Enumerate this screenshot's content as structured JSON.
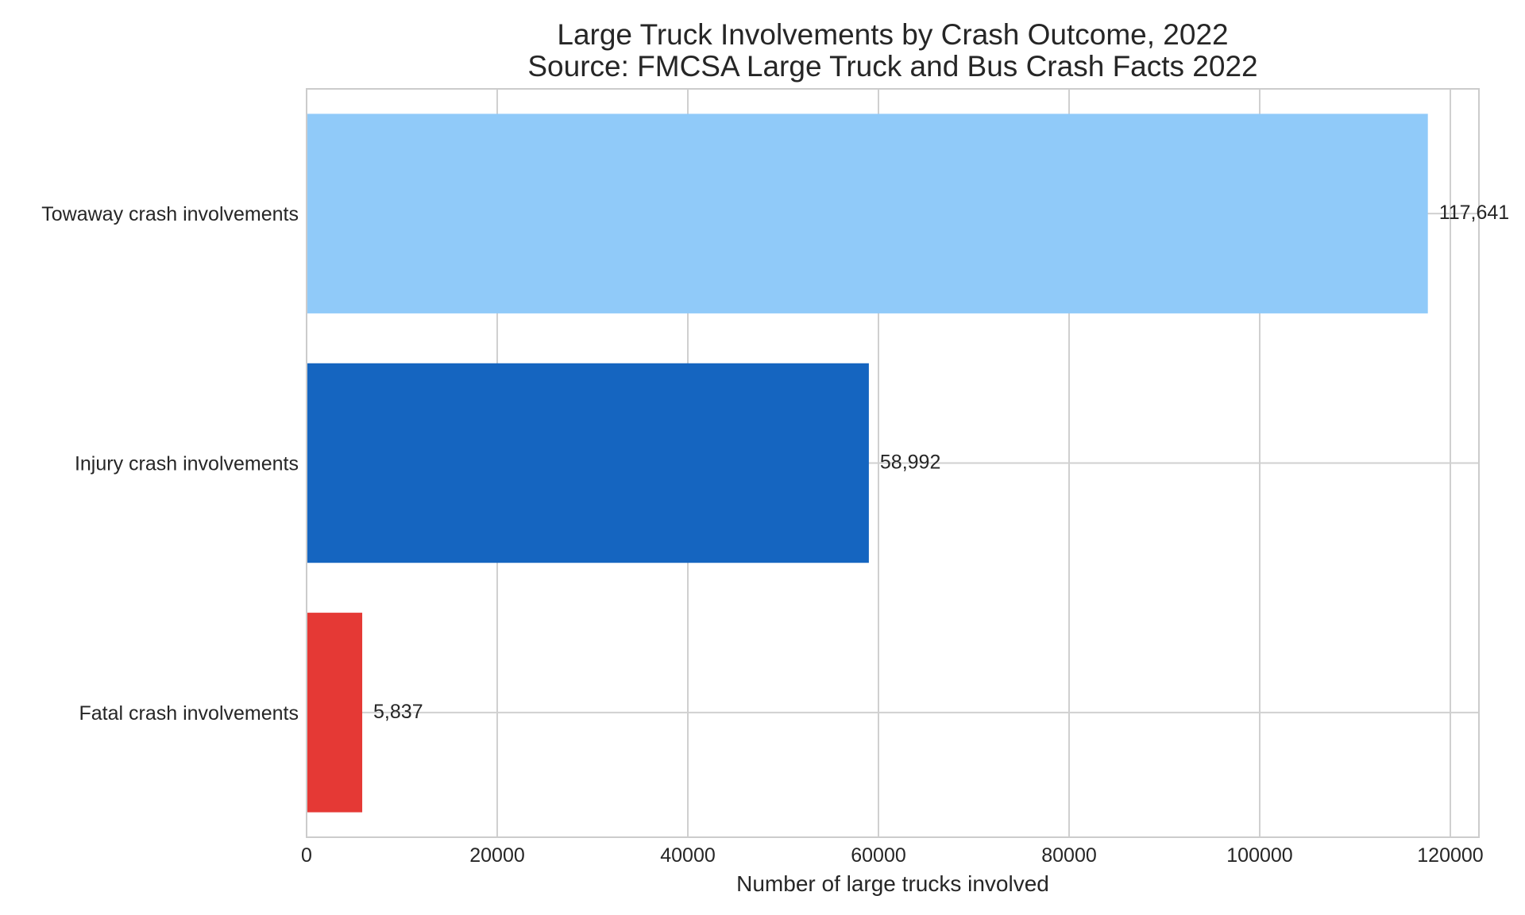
{
  "chart_data": {
    "type": "bar",
    "orientation": "horizontal",
    "title": "Large Truck Involvements by Crash Outcome, 2022",
    "subtitle": "Source: FMCSA Large Truck and Bus Crash Facts 2022",
    "xlabel": "Number of large trucks involved",
    "ylabel": "",
    "categories": [
      "Towaway crash involvements",
      "Injury crash involvements",
      "Fatal crash involvements"
    ],
    "values": [
      117641,
      58992,
      5837
    ],
    "data_labels": [
      "117,641",
      "58,992",
      "5,837"
    ],
    "colors": [
      "#90caf9",
      "#1565c0",
      "#e53935"
    ],
    "xlim": [
      0,
      123000
    ],
    "xticks": [
      0,
      20000,
      40000,
      60000,
      80000,
      100000,
      120000
    ],
    "xtick_labels": [
      "0",
      "20000",
      "40000",
      "60000",
      "80000",
      "100000",
      "120000"
    ],
    "grid": true,
    "legend": false
  }
}
